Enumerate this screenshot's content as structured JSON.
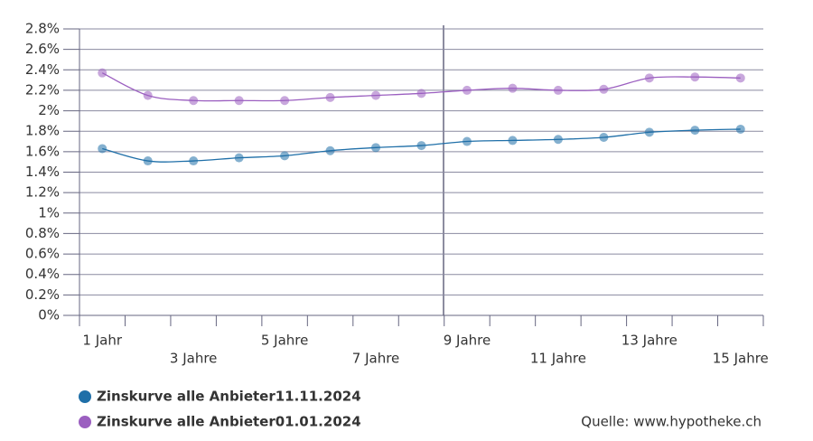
{
  "chart_data": {
    "type": "line",
    "categories": [
      "1 Jahr",
      null,
      "3 Jahre",
      null,
      "5 Jahre",
      null,
      "7 Jahre",
      null,
      "9 Jahre",
      null,
      "11 Jahre",
      null,
      "13 Jahre",
      null,
      "15 Jahre"
    ],
    "series": [
      {
        "name": "Zinskurve alle Anbieter11.11.2024",
        "color": "#1f6fa8",
        "values": [
          1.63,
          1.51,
          1.51,
          1.54,
          1.56,
          1.61,
          1.64,
          1.66,
          1.7,
          1.71,
          1.72,
          1.74,
          1.79,
          1.81,
          1.82
        ]
      },
      {
        "name": "Zinskurve alle Anbieter01.01.2024",
        "color": "#9b5fc0",
        "values": [
          2.37,
          2.15,
          2.1,
          2.1,
          2.1,
          2.13,
          2.15,
          2.17,
          2.2,
          2.22,
          2.2,
          2.21,
          2.32,
          2.33,
          2.32
        ]
      }
    ],
    "ylim": [
      0,
      2.8
    ],
    "yticks": [
      {
        "value": 0,
        "label": "0%"
      },
      {
        "value": 0.2,
        "label": "0.2%"
      },
      {
        "value": 0.4,
        "label": "0.4%"
      },
      {
        "value": 0.6,
        "label": "0.6%"
      },
      {
        "value": 0.8,
        "label": "0.8%"
      },
      {
        "value": 1,
        "label": "1%"
      },
      {
        "value": 1.2,
        "label": "1.2%"
      },
      {
        "value": 1.4,
        "label": "1.4%"
      },
      {
        "value": 1.6,
        "label": "1.6%"
      },
      {
        "value": 1.8,
        "label": "1.8%"
      },
      {
        "value": 2,
        "label": "2%"
      },
      {
        "value": 2.2,
        "label": "2.2%"
      },
      {
        "value": 2.4,
        "label": "2.4%"
      },
      {
        "value": 2.6,
        "label": "2.6%"
      },
      {
        "value": 2.8,
        "label": "2.8%"
      }
    ],
    "grid": true,
    "source": "Quelle: www.hypotheke.ch"
  }
}
